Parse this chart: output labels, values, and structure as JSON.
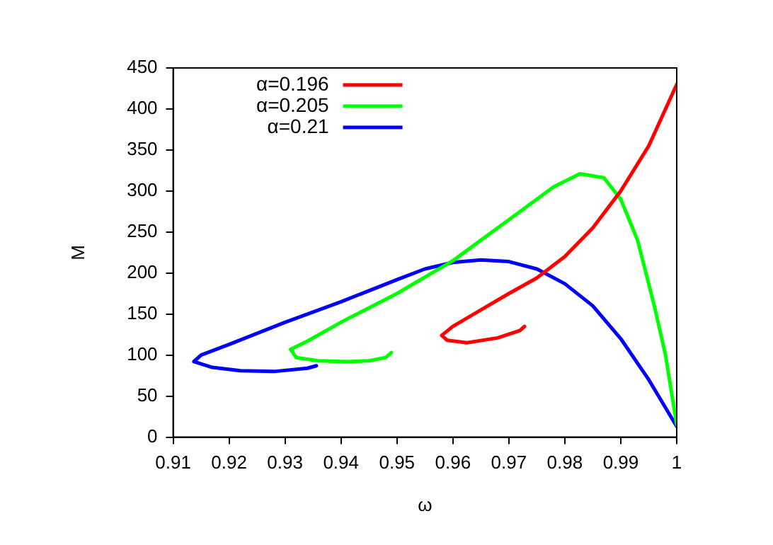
{
  "chart_data": {
    "type": "line",
    "xlabel": "ω",
    "ylabel": "M",
    "xlim": [
      0.91,
      1
    ],
    "xticks": [
      0.91,
      0.92,
      0.93,
      0.94,
      0.95,
      0.96,
      0.97,
      0.98,
      0.99,
      1
    ],
    "ylim": [
      0,
      450
    ],
    "yticks": [
      0,
      50,
      100,
      150,
      200,
      250,
      300,
      350,
      400,
      450
    ],
    "grid": false,
    "legend": "top left",
    "marker": "none",
    "line_style": "solid",
    "series": [
      {
        "name": "α=0.196",
        "color": "#ff0000",
        "x": [
          0.9728,
          0.972,
          0.968,
          0.9625,
          0.959,
          0.958,
          0.96,
          0.965,
          0.97,
          0.975,
          0.98,
          0.985,
          0.99,
          0.995,
          1.0
        ],
        "values": [
          135,
          130,
          121,
          115,
          118,
          124,
          135,
          155,
          175,
          194,
          220,
          255,
          300,
          355,
          430
        ]
      },
      {
        "name": "α=0.205",
        "color": "#00ff00",
        "x": [
          0.949,
          0.948,
          0.945,
          0.941,
          0.936,
          0.932,
          0.931,
          0.934,
          0.94,
          0.95,
          0.96,
          0.97,
          0.978,
          0.9827,
          0.987,
          0.99,
          0.993,
          0.996,
          0.998,
          1.0
        ],
        "values": [
          103,
          97,
          93,
          92,
          93,
          97,
          107,
          117,
          140,
          175,
          215,
          265,
          305,
          321,
          316,
          290,
          240,
          160,
          100,
          15
        ]
      },
      {
        "name": "α=0.21",
        "color": "#0000ff",
        "x": [
          0.9356,
          0.934,
          0.928,
          0.922,
          0.917,
          0.9137,
          0.915,
          0.92,
          0.93,
          0.94,
          0.95,
          0.955,
          0.96,
          0.965,
          0.97,
          0.975,
          0.98,
          0.985,
          0.99,
          0.995,
          1.0
        ],
        "values": [
          87,
          84,
          80,
          81,
          85,
          92,
          100,
          113,
          140,
          165,
          192,
          205,
          213,
          216,
          214,
          205,
          187,
          160,
          120,
          70,
          13
        ]
      }
    ]
  }
}
